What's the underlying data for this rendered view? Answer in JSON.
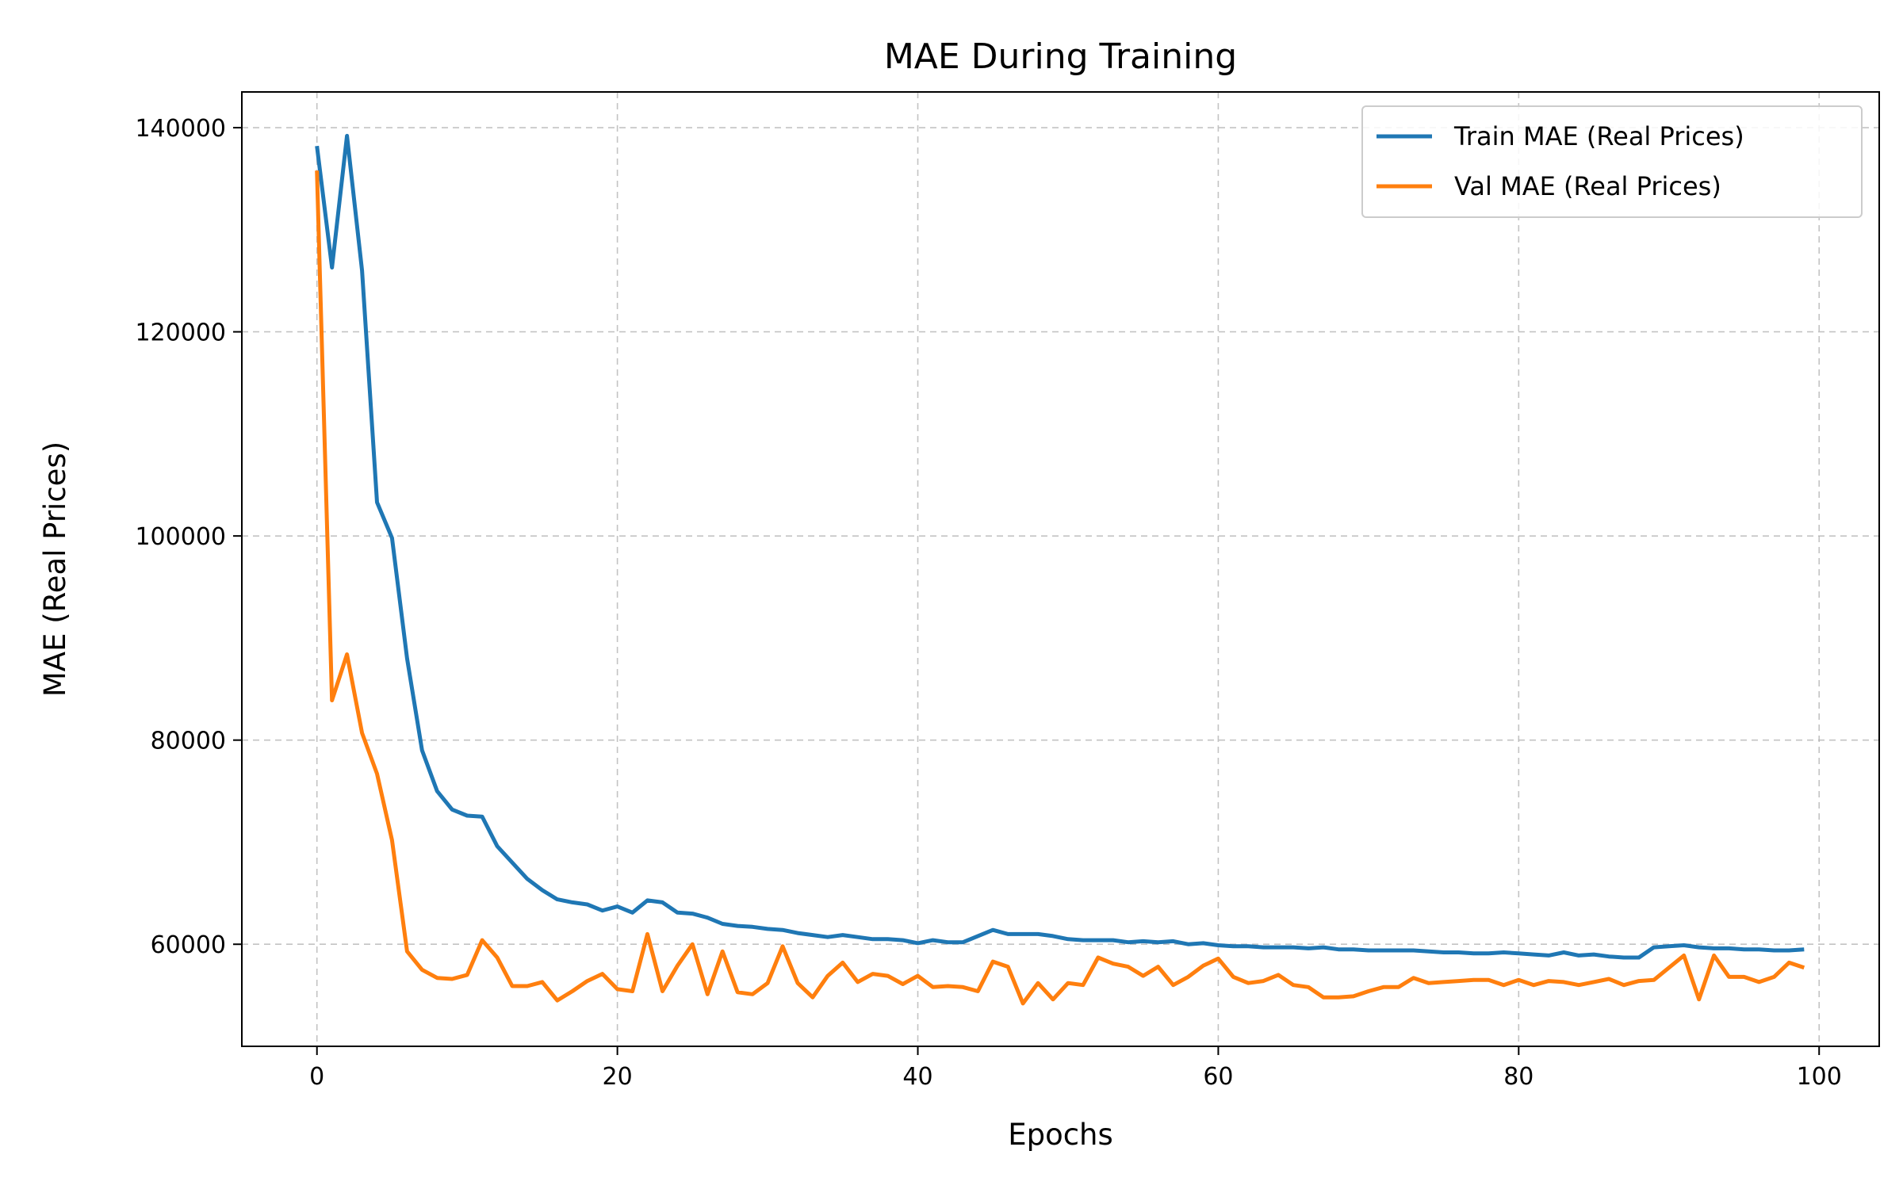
{
  "chart_data": {
    "type": "line",
    "title": "MAE During Training",
    "xlabel": "Epochs",
    "ylabel": "MAE (Real Prices)",
    "xlim": [
      -5,
      104
    ],
    "ylim": [
      50000,
      143500
    ],
    "xticks": [
      0,
      20,
      40,
      60,
      80,
      100
    ],
    "xtick_labels": [
      "0",
      "20",
      "40",
      "60",
      "80",
      "100"
    ],
    "yticks": [
      60000,
      80000,
      100000,
      120000,
      140000
    ],
    "ytick_labels": [
      "60000",
      "80000",
      "100000",
      "120000",
      "140000"
    ],
    "grid": true,
    "legend_position": "top-right",
    "series": [
      {
        "name": "Train MAE (Real Prices)",
        "color": "#1f77b4",
        "values": [
          138200,
          126300,
          139200,
          126000,
          103300,
          99800,
          88000,
          79000,
          75000,
          73200,
          72600,
          72500,
          69600,
          68000,
          66400,
          65300,
          64400,
          64100,
          63900,
          63300,
          63700,
          63100,
          64300,
          64100,
          63100,
          63000,
          62600,
          62000,
          61800,
          61700,
          61500,
          61400,
          61100,
          60900,
          60700,
          60900,
          60700,
          60500,
          60500,
          60400,
          60100,
          60400,
          60200,
          60200,
          60800,
          61400,
          61000,
          61000,
          61000,
          60800,
          60500,
          60400,
          60400,
          60400,
          60200,
          60300,
          60200,
          60300,
          60000,
          60100,
          59900,
          59800,
          59800,
          59700,
          59700,
          59700,
          59600,
          59700,
          59500,
          59500,
          59400,
          59400,
          59400,
          59400,
          59300,
          59200,
          59200,
          59100,
          59100,
          59200,
          59100,
          59000,
          58900,
          59200,
          58900,
          59000,
          58800,
          58700,
          58700,
          59700,
          59800,
          59900,
          59700,
          59600,
          59600,
          59500,
          59500,
          59400,
          59400,
          59500
        ]
      },
      {
        "name": "Val MAE (Real Prices)",
        "color": "#ff7f0e",
        "values": [
          135800,
          83900,
          88400,
          80700,
          76700,
          70200,
          59300,
          57500,
          56700,
          56600,
          57000,
          60400,
          58700,
          55900,
          55900,
          56300,
          54500,
          55400,
          56400,
          57100,
          55600,
          55400,
          61000,
          55400,
          57900,
          60000,
          55100,
          59300,
          55300,
          55100,
          56200,
          59800,
          56200,
          54800,
          56900,
          58200,
          56300,
          57100,
          56900,
          56100,
          56900,
          55800,
          55900,
          55800,
          55400,
          58300,
          57800,
          54200,
          56200,
          54600,
          56200,
          56000,
          58700,
          58100,
          57800,
          56900,
          57800,
          56000,
          56800,
          57900,
          58600,
          56800,
          56200,
          56400,
          57000,
          56000,
          55800,
          54800,
          54800,
          54900,
          55400,
          55800,
          55800,
          56700,
          56200,
          56300,
          56400,
          56500,
          56500,
          56000,
          56500,
          56000,
          56400,
          56300,
          56000,
          56300,
          56600,
          56000,
          56400,
          56500,
          57700,
          58900,
          54600,
          58900,
          56800,
          56800,
          56300,
          56800,
          58200,
          57700
        ]
      }
    ]
  }
}
